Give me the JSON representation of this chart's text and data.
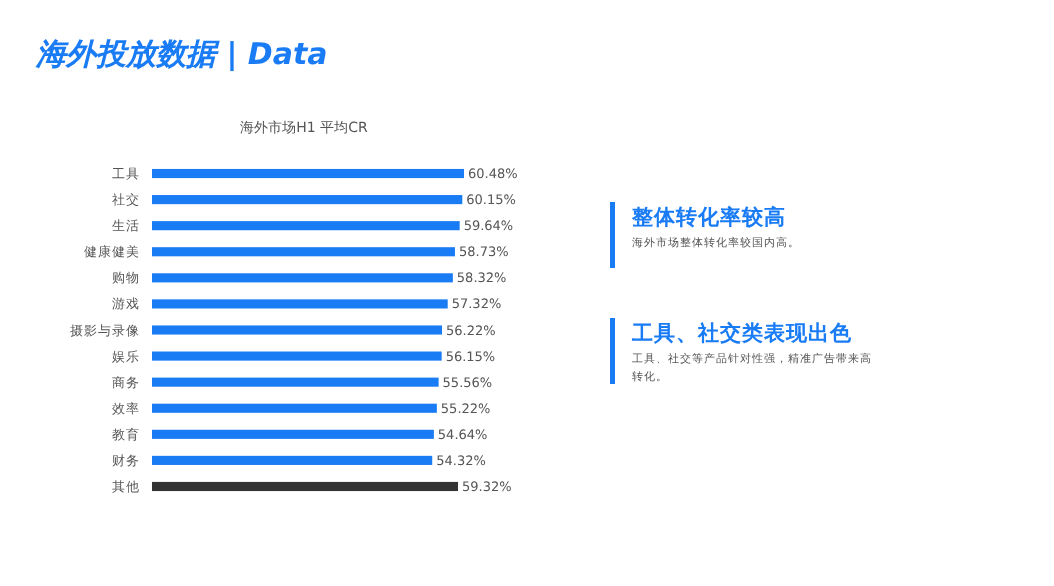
{
  "chart_data": {
    "type": "bar",
    "orientation": "horizontal",
    "title": "海外投放数据  | Data",
    "subtitle": "海外市场H1 平均CR",
    "categories": [
      "工具",
      "社交",
      "生活",
      "健康健美",
      "购物",
      "游戏",
      "摄影与录像",
      "娱乐",
      "商务",
      "效率",
      "教育",
      "财务",
      "其他"
    ],
    "values": [
      60.48,
      60.15,
      59.64,
      58.73,
      58.32,
      57.32,
      56.22,
      56.15,
      55.56,
      55.22,
      54.64,
      54.32,
      59.32
    ],
    "value_labels": [
      "60.48%",
      "60.15%",
      "59.64%",
      "58.73%",
      "58.32%",
      "57.32%",
      "56.22%",
      "56.15%",
      "55.56%",
      "55.22%",
      "54.64%",
      "54.32%",
      "59.32%"
    ],
    "colors": [
      "#1a7cf5",
      "#1a7cf5",
      "#1a7cf5",
      "#1a7cf5",
      "#1a7cf5",
      "#1a7cf5",
      "#1a7cf5",
      "#1a7cf5",
      "#1a7cf5",
      "#1a7cf5",
      "#1a7cf5",
      "#1a7cf5",
      "#333333"
    ],
    "annotations": [
      "整体转化率较高",
      "海外市场整体转化率较国内高。",
      "工具、社交类表现出色",
      "工具、社交等产品针对性强，精准广告带来高转化。"
    ]
  }
}
